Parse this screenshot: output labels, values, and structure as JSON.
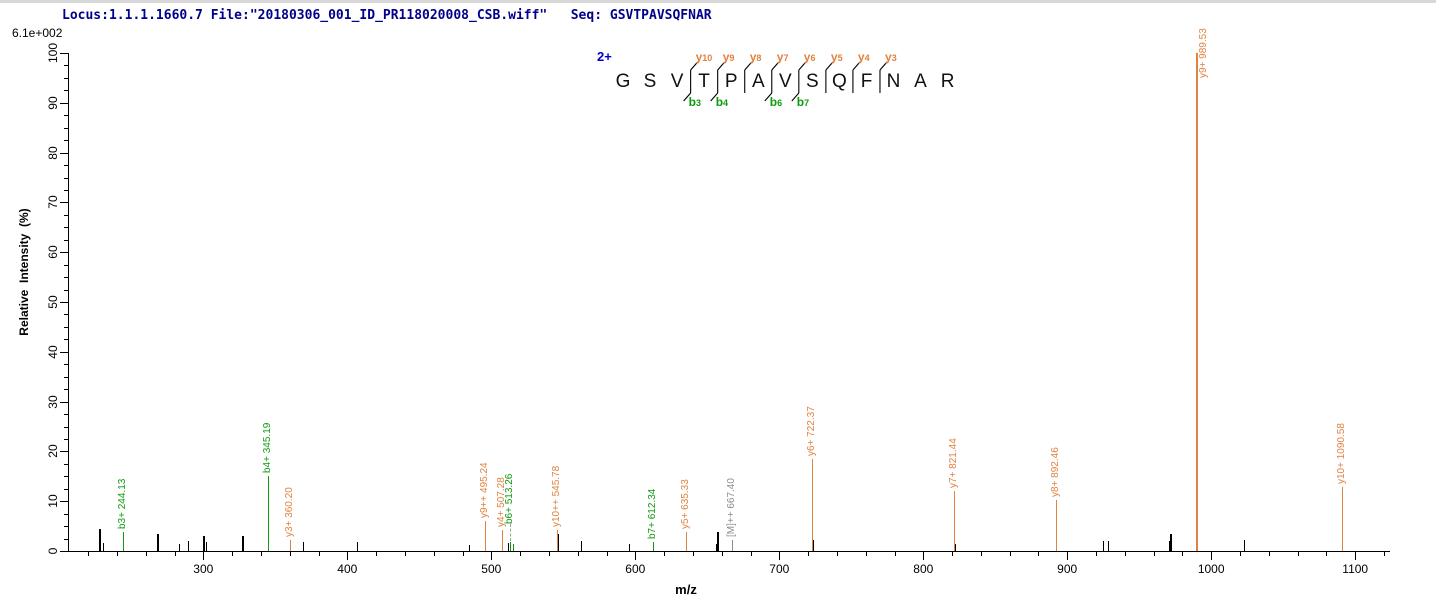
{
  "header": {
    "text": "Locus:1.1.1.1660.7 File:\"20180306_001_ID_PR118020008_CSB.wiff\"   Seq: GSVTPAVSQFNAR"
  },
  "scale_note": "6.1e+002",
  "peptide": {
    "charge_label": "2+",
    "sequence": "GSVTPAVSQFNAR",
    "residues": [
      "G",
      "S",
      "V",
      "T",
      "P",
      "A",
      "V",
      "S",
      "Q",
      "F",
      "N",
      "A",
      "R"
    ],
    "cleavages": [
      {
        "after": 3,
        "y": "y10",
        "b": "b3"
      },
      {
        "after": 4,
        "y": "y9",
        "b": "b4"
      },
      {
        "after": 5,
        "y": "y8"
      },
      {
        "after": 6,
        "y": "y7",
        "b": "b6"
      },
      {
        "after": 7,
        "y": "y6",
        "b": "b7"
      },
      {
        "after": 8,
        "y": "y5"
      },
      {
        "after": 9,
        "y": "y4"
      },
      {
        "after": 10,
        "y": "y3"
      }
    ]
  },
  "colors": {
    "y_ion": "#E08240",
    "b_ion": "#0C9B0C",
    "precursor": "#8C8C8C",
    "unassigned": "#000000",
    "header": "#00008B",
    "charge": "#0000CC",
    "axis": "#000000"
  },
  "chart_data": {
    "type": "bar",
    "title": "",
    "xlabel": "m/z",
    "ylabel": "Relative  Intensity  (%)",
    "xlim": [
      206,
      1120
    ],
    "ylim": [
      0,
      100
    ],
    "x_major_ticks": [
      300,
      400,
      500,
      600,
      700,
      800,
      900,
      1000,
      1100
    ],
    "x_minor_tick_step": 20,
    "y_major_ticks": [
      0,
      10,
      20,
      30,
      40,
      50,
      60,
      70,
      80,
      90,
      100
    ],
    "y_minor_tick_step": 2.5,
    "base_peak_intensity": "6.1e+002",
    "annotated_peaks": [
      {
        "mz": 244.13,
        "intensity": 3.8,
        "type": "b",
        "label": "b3+ 244.13"
      },
      {
        "mz": 345.19,
        "intensity": 15.0,
        "type": "b",
        "label": "b4+ 345.19"
      },
      {
        "mz": 360.2,
        "intensity": 2.3,
        "type": "y",
        "label": "y3+ 360.20"
      },
      {
        "mz": 495.24,
        "intensity": 6.1,
        "type": "y",
        "label": "y9++ 495.24"
      },
      {
        "mz": 507.28,
        "intensity": 4.2,
        "type": "y",
        "label": "y4+ 507.28"
      },
      {
        "mz": 513.26,
        "intensity": 1.9,
        "type": "b",
        "label": "b6+ 513.26",
        "leader": true,
        "label_base": 5.4
      },
      {
        "mz": 514.9,
        "intensity": 1.5,
        "type": "b",
        "label": ""
      },
      {
        "mz": 545.78,
        "intensity": 4.2,
        "type": "y",
        "label": "y10++ 545.78"
      },
      {
        "mz": 612.34,
        "intensity": 1.8,
        "type": "b",
        "label": "b7+ 612.34"
      },
      {
        "mz": 635.33,
        "intensity": 3.9,
        "type": "y",
        "label": "y5+ 635.33"
      },
      {
        "mz": 667.4,
        "intensity": 2.2,
        "type": "precursor",
        "label": "[M]++ 667.40"
      },
      {
        "mz": 722.37,
        "intensity": 18.5,
        "type": "y",
        "label": "y6+ 722.37"
      },
      {
        "mz": 821.44,
        "intensity": 12.0,
        "type": "y",
        "label": "y7+ 821.44"
      },
      {
        "mz": 892.46,
        "intensity": 10.2,
        "type": "y",
        "label": "y8+ 892.46"
      },
      {
        "mz": 989.53,
        "intensity": 100,
        "type": "y",
        "label": "y9+ 989.53",
        "label_base": 95,
        "label_dx": 8
      },
      {
        "mz": 1090.58,
        "intensity": 12.8,
        "type": "y",
        "label": "y10+ 1090.58"
      }
    ],
    "unassigned_peaks": [
      [
        227.9,
        4.5
      ],
      [
        230.2,
        1.7
      ],
      [
        268.7,
        3.4
      ],
      [
        283.0,
        1.4
      ],
      [
        289.5,
        2.0
      ],
      [
        300.2,
        3.1
      ],
      [
        301.8,
        1.9
      ],
      [
        327.6,
        3.0
      ],
      [
        369.5,
        1.8
      ],
      [
        406.8,
        1.8
      ],
      [
        484.2,
        1.3
      ],
      [
        511.8,
        1.6
      ],
      [
        546.2,
        3.4
      ],
      [
        562.3,
        2.0
      ],
      [
        595.4,
        1.4
      ],
      [
        655.9,
        1.5
      ],
      [
        657.4,
        3.8
      ],
      [
        723.5,
        2.2
      ],
      [
        821.8,
        1.4
      ],
      [
        924.8,
        2.1
      ],
      [
        928.3,
        2.1
      ],
      [
        970.8,
        2.0
      ],
      [
        972.0,
        3.4
      ],
      [
        990.4,
        3.0
      ],
      [
        1022.5,
        2.2
      ]
    ]
  }
}
